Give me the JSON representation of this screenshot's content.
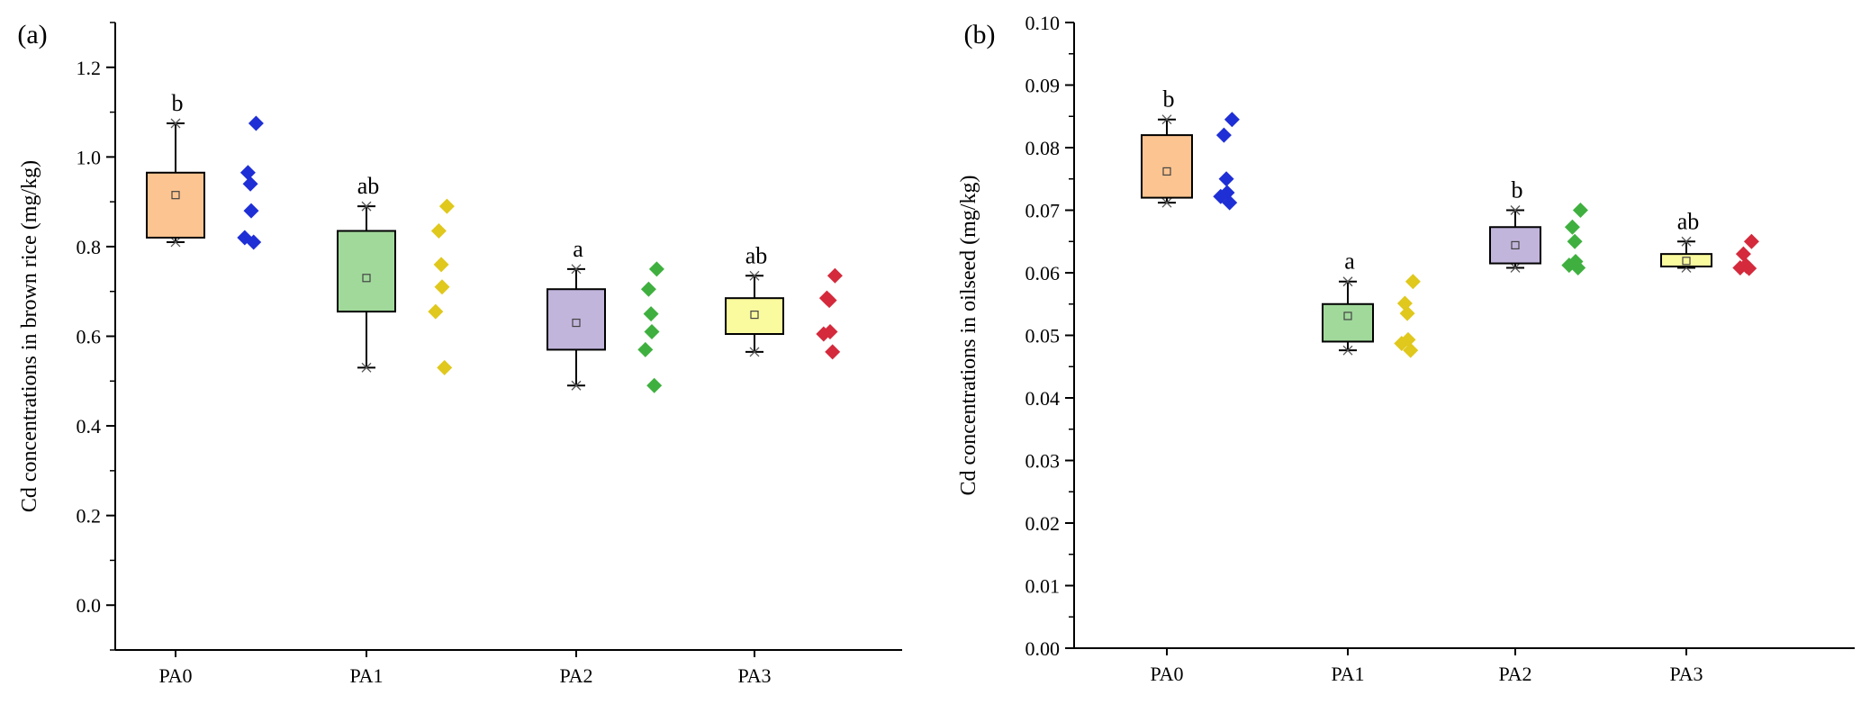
{
  "chart_data": [
    {
      "panel_label": "(a)",
      "type": "box",
      "ylabel": "Cd concentrations in brown rice (mg/kg)",
      "ylim": [
        -0.1,
        1.3
      ],
      "yticks": [
        0.0,
        0.2,
        0.4,
        0.6,
        0.8,
        1.0,
        1.2
      ],
      "ytick_labels": [
        "0.0",
        "0.2",
        "0.4",
        "0.6",
        "0.8",
        "1.0",
        "1.2"
      ],
      "categories": [
        "PA0",
        "PA1",
        "PA2",
        "PA3"
      ],
      "boxes": [
        {
          "name": "PA0",
          "whisker_low": 0.81,
          "q1": 0.82,
          "q3": 0.965,
          "whisker_high": 1.075,
          "mean": 0.915,
          "sig": "b",
          "fill": "#fcc490",
          "points": [
            1.075,
            0.965,
            0.94,
            0.88,
            0.82,
            0.81
          ],
          "point_color": "#1f2fd6"
        },
        {
          "name": "PA1",
          "whisker_low": 0.53,
          "q1": 0.655,
          "q3": 0.835,
          "whisker_high": 0.89,
          "mean": 0.73,
          "sig": "ab",
          "fill": "#a1d99b",
          "points": [
            0.89,
            0.835,
            0.76,
            0.71,
            0.655,
            0.53
          ],
          "point_color": "#e0c81c"
        },
        {
          "name": "PA2",
          "whisker_low": 0.49,
          "q1": 0.57,
          "q3": 0.705,
          "whisker_high": 0.75,
          "mean": 0.63,
          "sig": "a",
          "fill": "#c2b5dc",
          "points": [
            0.75,
            0.705,
            0.65,
            0.61,
            0.57,
            0.49
          ],
          "point_color": "#3fb03f"
        },
        {
          "name": "PA3",
          "whisker_low": 0.565,
          "q1": 0.605,
          "q3": 0.685,
          "whisker_high": 0.735,
          "mean": 0.648,
          "sig": "ab",
          "fill": "#fafa9e",
          "points": [
            0.735,
            0.685,
            0.68,
            0.61,
            0.605,
            0.565
          ],
          "point_color": "#d42a3c"
        }
      ]
    },
    {
      "panel_label": "(b)",
      "type": "box",
      "ylabel": "Cd concentrations in oilseed (mg/kg)",
      "ylim": [
        0,
        0.1
      ],
      "yticks": [
        0.0,
        0.01,
        0.02,
        0.03,
        0.04,
        0.05,
        0.06,
        0.07,
        0.08,
        0.09,
        0.1
      ],
      "ytick_labels": [
        "0.00",
        "0.01",
        "0.02",
        "0.03",
        "0.04",
        "0.05",
        "0.06",
        "0.07",
        "0.08",
        "0.09",
        "0.10"
      ],
      "categories": [
        "PA0",
        "PA1",
        "PA2",
        "PA3"
      ],
      "boxes": [
        {
          "name": "PA0",
          "whisker_low": 0.0712,
          "q1": 0.072,
          "q3": 0.082,
          "whisker_high": 0.0845,
          "mean": 0.0762,
          "sig": "b",
          "fill": "#fcc490",
          "points": [
            0.0845,
            0.082,
            0.075,
            0.0728,
            0.0722,
            0.0712
          ],
          "point_color": "#1f2fd6"
        },
        {
          "name": "PA1",
          "whisker_low": 0.0476,
          "q1": 0.049,
          "q3": 0.055,
          "whisker_high": 0.0586,
          "mean": 0.0531,
          "sig": "a",
          "fill": "#a1d99b",
          "points": [
            0.0586,
            0.0551,
            0.0535,
            0.0493,
            0.0487,
            0.0476
          ],
          "point_color": "#e0c81c"
        },
        {
          "name": "PA2",
          "whisker_low": 0.0608,
          "q1": 0.0615,
          "q3": 0.0673,
          "whisker_high": 0.07,
          "mean": 0.0644,
          "sig": "b",
          "fill": "#c2b5dc",
          "points": [
            0.07,
            0.0673,
            0.065,
            0.0618,
            0.0612,
            0.0608
          ],
          "point_color": "#3fb03f"
        },
        {
          "name": "PA3",
          "whisker_low": 0.0608,
          "q1": 0.061,
          "q3": 0.063,
          "whisker_high": 0.065,
          "mean": 0.0619,
          "sig": "ab",
          "fill": "#fafa9e",
          "points": [
            0.065,
            0.063,
            0.0612,
            0.061,
            0.0608,
            0.0607
          ],
          "point_color": "#d42a3c"
        }
      ]
    }
  ]
}
